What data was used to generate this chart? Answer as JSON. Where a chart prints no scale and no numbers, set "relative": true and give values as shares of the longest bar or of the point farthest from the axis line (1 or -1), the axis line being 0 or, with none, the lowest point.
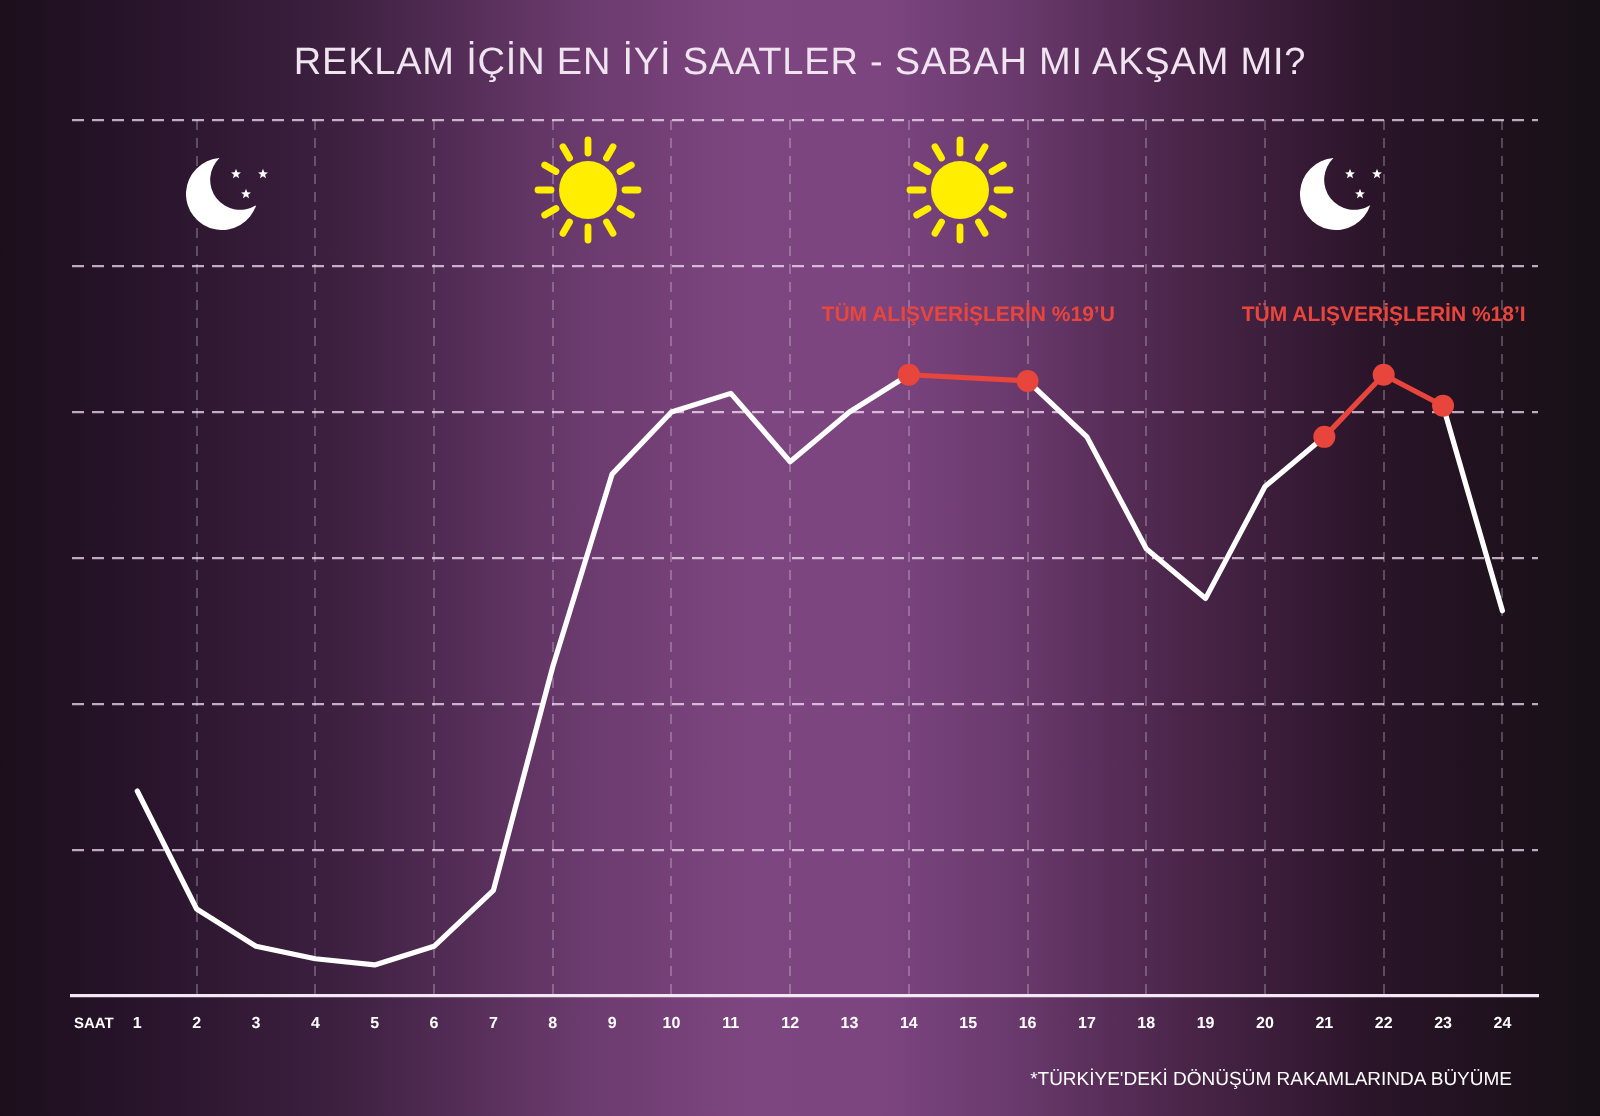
{
  "chart_data": {
    "type": "line",
    "title": "REKLAM İÇİN EN İYİ SAATLER - SABAH MI AKŞAM MI?",
    "xlabel": "SAAT",
    "relative": true,
    "grid": true,
    "x": [
      1,
      2,
      3,
      4,
      5,
      6,
      7,
      8,
      9,
      10,
      11,
      12,
      13,
      14,
      15,
      16,
      17,
      18,
      19,
      20,
      21,
      22,
      23,
      24
    ],
    "xlim": [
      -0.1,
      24.6
    ],
    "xticks": [
      1,
      2,
      3,
      4,
      5,
      6,
      7,
      8,
      9,
      10,
      11,
      12,
      13,
      14,
      15,
      16,
      17,
      18,
      19,
      20,
      21,
      22,
      23,
      24
    ],
    "series": [
      {
        "color": "#ffffff",
        "marker": "none",
        "values": [
          0.33,
          0.14,
          0.08,
          0.06,
          0.05,
          0.08,
          0.17,
          0.53,
          0.84,
          0.94,
          0.97,
          0.86,
          0.94,
          1.0,
          null,
          0.99,
          0.9,
          0.72,
          0.64,
          0.82,
          0.9,
          null,
          0.95,
          0.62
        ]
      },
      {
        "color": "#e8453c",
        "marker": "circle",
        "x": [
          14,
          16
        ],
        "values": [
          1.0,
          0.99
        ]
      },
      {
        "color": "#e8453c",
        "marker": "circle",
        "x": [
          21,
          22,
          23
        ],
        "values": [
          0.9,
          1.0,
          0.95
        ]
      }
    ],
    "annotations": [
      "TÜM ALIŞVERİŞLERİN %19’U",
      "TÜM ALIŞVERİŞLERİN %18’I",
      "*TÜRKİYE'DEKİ DÖNÜŞÜM RAKAMLARINDA BÜYÜME"
    ]
  }
}
